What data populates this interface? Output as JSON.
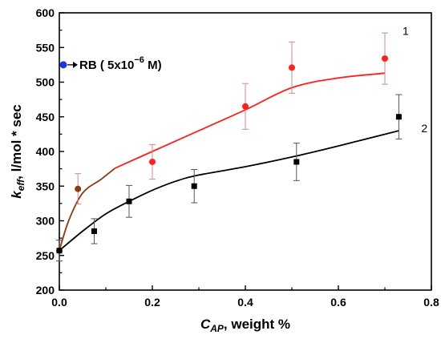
{
  "chart_data": {
    "type": "scatter",
    "xlabel_main": "C",
    "xlabel_sub": "AP",
    "xlabel_rest": ", weight %",
    "ylabel_main": "k",
    "ylabel_sub": "eff",
    "ylabel_rest": ", l/mol * sec",
    "xlim": [
      0.0,
      0.8
    ],
    "ylim": [
      200,
      600
    ],
    "xticks": [
      "0.0",
      "0.2",
      "0.4",
      "0.6",
      "0.8"
    ],
    "yticks": [
      "200",
      "250",
      "300",
      "350",
      "400",
      "450",
      "500",
      "550",
      "600"
    ],
    "series": [
      {
        "name": "1",
        "color": "#ff2020",
        "marker": "circle",
        "points": [
          {
            "x": 0.0,
            "y": 257,
            "err": 15,
            "color": "#8b3a12"
          },
          {
            "x": 0.04,
            "y": 346,
            "err": 22,
            "color": "#8b3a12"
          },
          {
            "x": 0.2,
            "y": 385,
            "err": 25
          },
          {
            "x": 0.4,
            "y": 465,
            "err": 33
          },
          {
            "x": 0.5,
            "y": 521,
            "err": 37
          },
          {
            "x": 0.7,
            "y": 534,
            "err": 37
          }
        ],
        "fit_early": [
          [
            0.0,
            257
          ],
          [
            0.02,
            300
          ],
          [
            0.05,
            340
          ],
          [
            0.09,
            360
          ],
          [
            0.12,
            376
          ]
        ],
        "fit_early_color": "#8b3a12",
        "fit": [
          [
            0.12,
            376
          ],
          [
            0.2,
            400
          ],
          [
            0.3,
            430
          ],
          [
            0.4,
            460
          ],
          [
            0.5,
            492
          ],
          [
            0.6,
            506
          ],
          [
            0.7,
            513
          ]
        ]
      },
      {
        "name": "2",
        "color": "#000000",
        "marker": "square",
        "points": [
          {
            "x": 0.0,
            "y": 257,
            "err": 15
          },
          {
            "x": 0.075,
            "y": 285,
            "err": 18
          },
          {
            "x": 0.15,
            "y": 328,
            "err": 23
          },
          {
            "x": 0.29,
            "y": 350,
            "err": 24
          },
          {
            "x": 0.51,
            "y": 385,
            "err": 27
          },
          {
            "x": 0.73,
            "y": 450,
            "err": 32
          }
        ],
        "fit": [
          [
            0.0,
            257
          ],
          [
            0.05,
            285
          ],
          [
            0.1,
            310
          ],
          [
            0.15,
            328
          ],
          [
            0.2,
            344
          ],
          [
            0.25,
            357
          ],
          [
            0.3,
            366
          ],
          [
            0.4,
            378
          ],
          [
            0.5,
            392
          ],
          [
            0.6,
            408
          ],
          [
            0.73,
            430
          ]
        ]
      }
    ],
    "reference": {
      "y": 525,
      "color": "#1a35e8",
      "label_prefix": "RB ( 5x10",
      "label_exp": "−6",
      "label_suffix": " M)"
    }
  }
}
